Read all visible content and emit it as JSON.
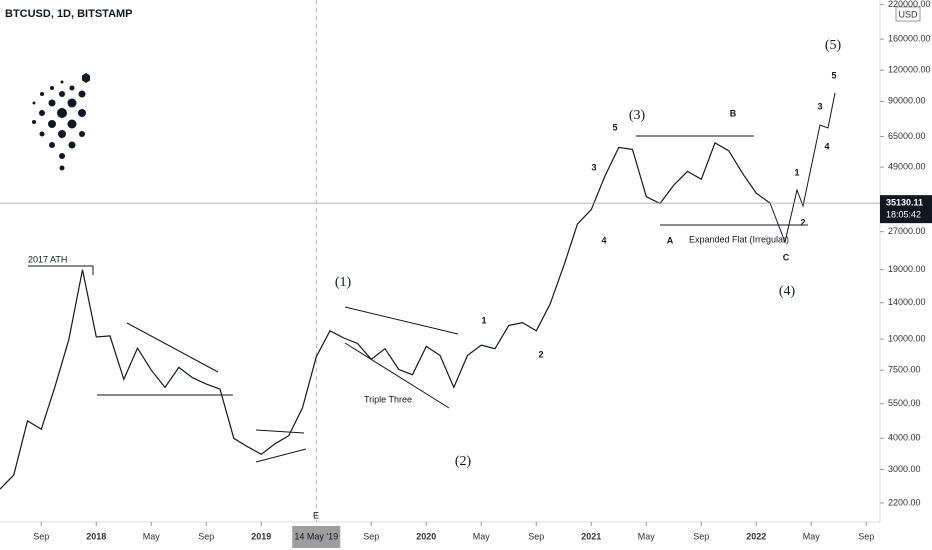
{
  "chart_data": {
    "type": "line",
    "title": "BTCUSD, 1D, BITSTAMP",
    "currency": "USD",
    "log_scale": true,
    "x": [
      "2017-06",
      "2017-07",
      "2017-08",
      "2017-09",
      "2017-10",
      "2017-11",
      "2017-12",
      "2018-01",
      "2018-02",
      "2018-03",
      "2018-04",
      "2018-05",
      "2018-06",
      "2018-07",
      "2018-08",
      "2018-09",
      "2018-10",
      "2018-11",
      "2018-12",
      "2019-01",
      "2019-02",
      "2019-03",
      "2019-04",
      "2019-05",
      "2019-06",
      "2019-07",
      "2019-08",
      "2019-09",
      "2019-10",
      "2019-11",
      "2019-12",
      "2020-01",
      "2020-02",
      "2020-03",
      "2020-04",
      "2020-05",
      "2020-06",
      "2020-07",
      "2020-08",
      "2020-09",
      "2020-10",
      "2020-11",
      "2020-12",
      "2021-01",
      "2021-02",
      "2021-03",
      "2021-04",
      "2021-05",
      "2021-06",
      "2021-07",
      "2021-08",
      "2021-09",
      "2021-10",
      "2021-11",
      "2021-12",
      "2022-01",
      "2022-02"
    ],
    "series": [
      {
        "color": "#131722",
        "values": [
          2500,
          2850,
          4700,
          4350,
          6450,
          9950,
          19000,
          10200,
          10300,
          6900,
          9200,
          7500,
          6400,
          7700,
          7000,
          6600,
          6300,
          4000,
          3700,
          3450,
          3800,
          4100,
          5300,
          8500,
          10800,
          10100,
          9600,
          8300,
          9150,
          7550,
          7200,
          9350,
          8600,
          6400,
          8600,
          9450,
          9150,
          11350,
          11650,
          10800,
          13800,
          19700,
          29000,
          33100,
          45200,
          58800,
          57700,
          37300,
          35000,
          41500,
          47100,
          43800,
          61300,
          57000,
          46300,
          38500,
          35130
        ]
      }
    ],
    "xlim": [
      "2017-06",
      "2022-10"
    ],
    "xticks": [
      {
        "value": "2017-09",
        "label": "Sep"
      },
      {
        "value": "2018-01",
        "label": "2018"
      },
      {
        "value": "2018-05",
        "label": "May"
      },
      {
        "value": "2018-09",
        "label": "Sep"
      },
      {
        "value": "2019-01",
        "label": "2019"
      },
      {
        "value": "2019-09",
        "label": "Sep"
      },
      {
        "value": "2020-01",
        "label": "2020"
      },
      {
        "value": "2020-05",
        "label": "May"
      },
      {
        "value": "2020-09",
        "label": "Sep"
      },
      {
        "value": "2021-01",
        "label": "2021"
      },
      {
        "value": "2021-05",
        "label": "May"
      },
      {
        "value": "2021-09",
        "label": "Sep"
      },
      {
        "value": "2022-01",
        "label": "2022"
      },
      {
        "value": "2022-05",
        "label": "May"
      },
      {
        "value": "2022-09",
        "label": "Sep"
      }
    ],
    "crosshair": {
      "value": "2019-05",
      "label": "14 May '19"
    },
    "ylim": [
      1845,
      229600
    ],
    "yticks": [
      {
        "value": 2200,
        "label": "2200.00"
      },
      {
        "value": 3000,
        "label": "3000.00"
      },
      {
        "value": 4000,
        "label": "4000.00"
      },
      {
        "value": 5500,
        "label": "5500.00"
      },
      {
        "value": 7500,
        "label": "7500.00"
      },
      {
        "value": 10000,
        "label": "10000.00"
      },
      {
        "value": 14000,
        "label": "14000.00"
      },
      {
        "value": 19000,
        "label": "19000.00"
      },
      {
        "value": 27000,
        "label": "27000.00"
      },
      {
        "value": 49000,
        "label": "49000.00"
      },
      {
        "value": 65000,
        "label": "65000.00"
      },
      {
        "value": 90000,
        "label": "90000.00"
      },
      {
        "value": 120000,
        "label": "120000.00"
      },
      {
        "value": 160000,
        "label": "160000.00"
      },
      {
        "value": 220000,
        "label": "220000.00"
      }
    ],
    "last_price": 35130.11,
    "last_time": "18:05:42",
    "annotations": [
      "2017 ATH",
      "(1)",
      "(2)",
      "(3)",
      "(4)",
      "(5)",
      "1",
      "2",
      "3",
      "4",
      "5",
      "A",
      "B",
      "C",
      "1",
      "2",
      "3",
      "4",
      "5",
      "Triple Three",
      "Expanded Flat (Irregular)",
      "E"
    ]
  }
}
